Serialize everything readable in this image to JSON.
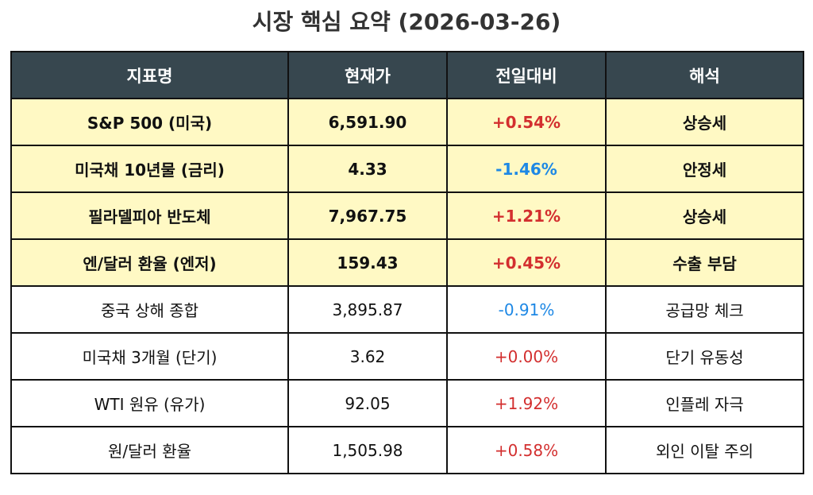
{
  "title": "시장 핵심 요약 (2026-03-26)",
  "colors": {
    "header_bg": "#37474f",
    "highlight_bg": "#fff9c4",
    "up": "#d32f2f",
    "down": "#1e88e5"
  },
  "headers": [
    "지표명",
    "현재가",
    "전일대비",
    "해석"
  ],
  "rows": [
    {
      "name": "S&P 500 (미국)",
      "price": "6,591.90",
      "change": "+0.54%",
      "note": "상승세",
      "highlight": true,
      "dir": "up"
    },
    {
      "name": "미국채 10년물 (금리)",
      "price": "4.33",
      "change": "-1.46%",
      "note": "안정세",
      "highlight": true,
      "dir": "down"
    },
    {
      "name": "필라델피아 반도체",
      "price": "7,967.75",
      "change": "+1.21%",
      "note": "상승세",
      "highlight": true,
      "dir": "up"
    },
    {
      "name": "엔/달러 환율 (엔저)",
      "price": "159.43",
      "change": "+0.45%",
      "note": "수출 부담",
      "highlight": true,
      "dir": "up"
    },
    {
      "name": "중국 상해 종합",
      "price": "3,895.87",
      "change": "-0.91%",
      "note": "공급망 체크",
      "highlight": false,
      "dir": "down"
    },
    {
      "name": "미국채 3개월 (단기)",
      "price": "3.62",
      "change": "+0.00%",
      "note": "단기 유동성",
      "highlight": false,
      "dir": "up"
    },
    {
      "name": "WTI 원유 (유가)",
      "price": "92.05",
      "change": "+1.92%",
      "note": "인플레 자극",
      "highlight": false,
      "dir": "up"
    },
    {
      "name": "원/달러 환율",
      "price": "1,505.98",
      "change": "+0.58%",
      "note": "외인 이탈 주의",
      "highlight": false,
      "dir": "up"
    }
  ]
}
